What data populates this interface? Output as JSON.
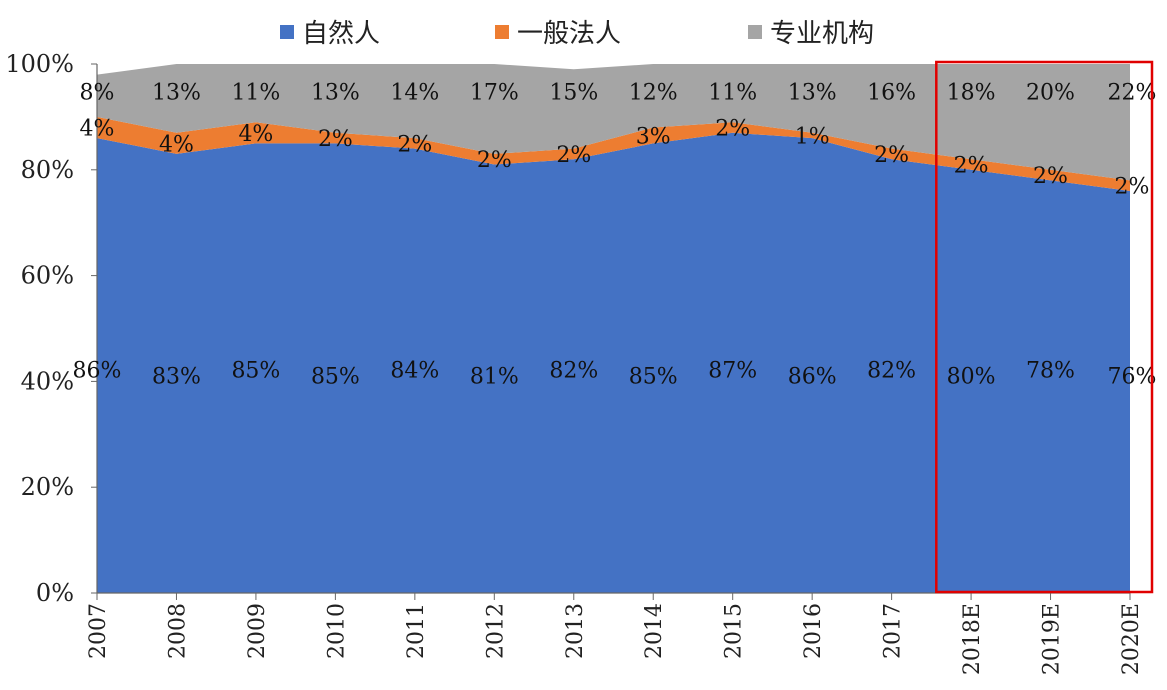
{
  "chart_data": {
    "type": "area",
    "stacked": true,
    "categories": [
      "2007",
      "2008",
      "2009",
      "2010",
      "2011",
      "2012",
      "2013",
      "2014",
      "2015",
      "2016",
      "2017",
      "2018E",
      "2019E",
      "2020E"
    ],
    "series": [
      {
        "name": "自然人",
        "color": "#4472C4",
        "values": [
          86,
          83,
          85,
          85,
          84,
          81,
          82,
          85,
          87,
          86,
          82,
          80,
          78,
          76
        ]
      },
      {
        "name": "一般法人",
        "color": "#ED7D31",
        "values": [
          4,
          4,
          4,
          2,
          2,
          2,
          2,
          3,
          2,
          1,
          2,
          2,
          2,
          2
        ]
      },
      {
        "name": "专业机构",
        "color": "#A5A5A5",
        "values": [
          8,
          13,
          11,
          13,
          14,
          17,
          15,
          12,
          11,
          13,
          16,
          18,
          20,
          22
        ]
      }
    ],
    "data_labels": {
      "自然人": [
        "86%",
        "83%",
        "85%",
        "85%",
        "84%",
        "81%",
        "82%",
        "85%",
        "87%",
        "86%",
        "82%",
        "80%",
        "78%",
        "76%"
      ],
      "一般法人": [
        "4%",
        "4%",
        "4%",
        "2%",
        "2%",
        "2%",
        "2%",
        "3%",
        "2%",
        "1%",
        "2%",
        "2%",
        "2%",
        "2%"
      ],
      "专业机构": [
        "8%",
        "13%",
        "11%",
        "13%",
        "14%",
        "17%",
        "15%",
        "12%",
        "11%",
        "13%",
        "16%",
        "18%",
        "20%",
        "22%"
      ]
    },
    "y_ticks": [
      "0%",
      "20%",
      "40%",
      "60%",
      "80%",
      "100%"
    ],
    "ylim": [
      0,
      100
    ],
    "legend_position": "top",
    "highlight": {
      "from": "2018E",
      "to": "2020E",
      "color": "#E00000"
    }
  }
}
